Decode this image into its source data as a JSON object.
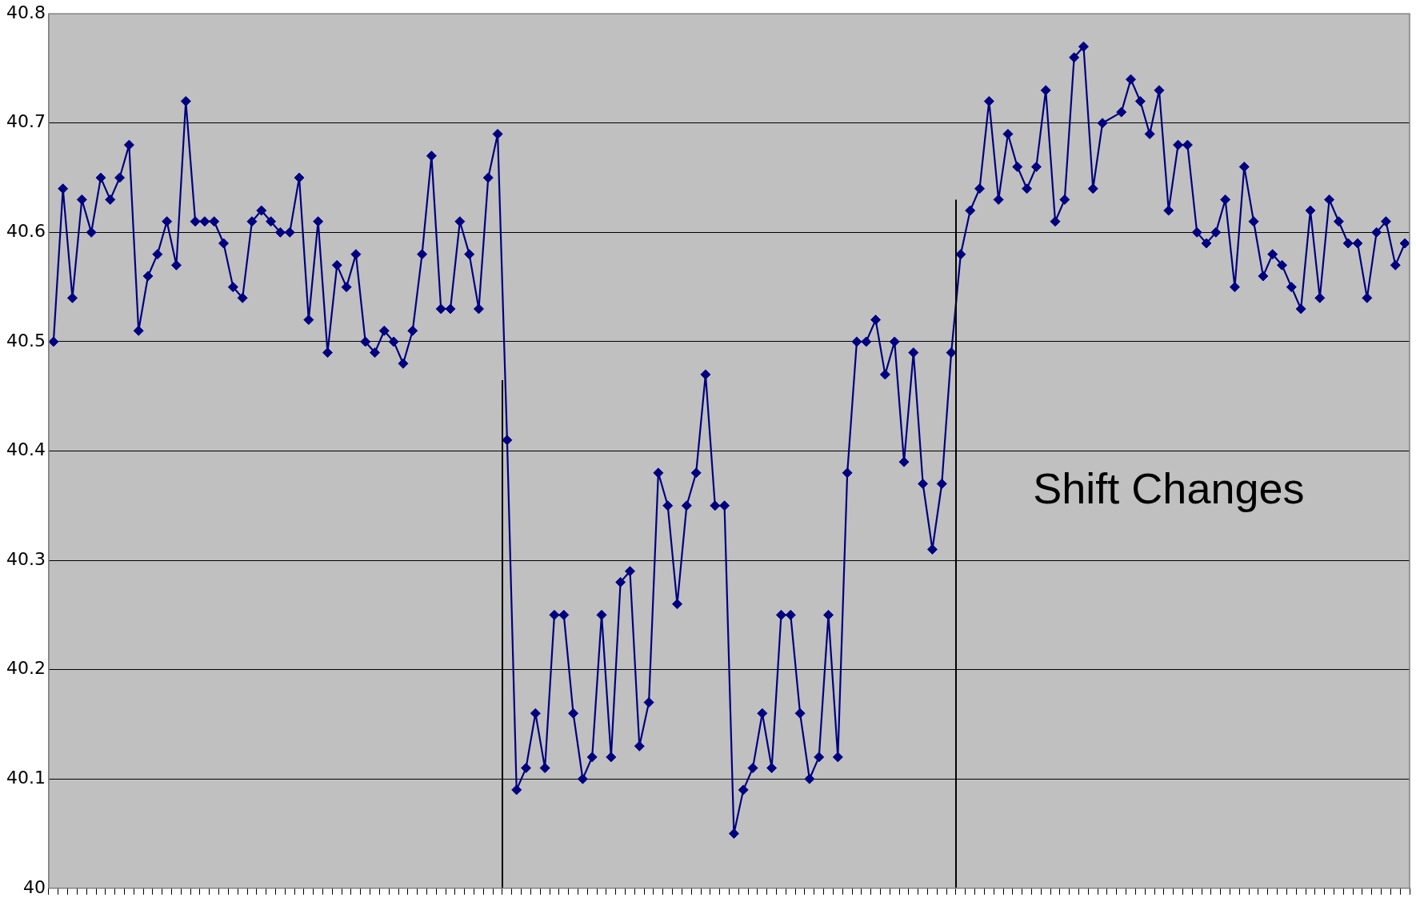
{
  "chart_data": {
    "type": "line",
    "categories": [
      null,
      null,
      null,
      null,
      null,
      null,
      null,
      null,
      null,
      null,
      null,
      null,
      null,
      null,
      null,
      null,
      null,
      null,
      null,
      null,
      null,
      null,
      null,
      null,
      null,
      null,
      null,
      null,
      null,
      null,
      null,
      null,
      null,
      null,
      null,
      null,
      null,
      null,
      null,
      null,
      null,
      null,
      null,
      null,
      null,
      null,
      null,
      null,
      null,
      null,
      null,
      null,
      null,
      null,
      null,
      null,
      null,
      null,
      null,
      null,
      null,
      null,
      null,
      null,
      null,
      null,
      null,
      null,
      null,
      null,
      null,
      null,
      null,
      null,
      null,
      null,
      null,
      null,
      null,
      null,
      null,
      null,
      null,
      null,
      null,
      null,
      null,
      null,
      null,
      null,
      null,
      null,
      null,
      null,
      null,
      null,
      null,
      null,
      null,
      null,
      null,
      null,
      null,
      null,
      null,
      null,
      null,
      null,
      null,
      null,
      null,
      null,
      null,
      null,
      null,
      null,
      null,
      null,
      null,
      null,
      null,
      null,
      null,
      null,
      null,
      null,
      null,
      null,
      null,
      null,
      null,
      null,
      null,
      null,
      null,
      null,
      null,
      null,
      null,
      null,
      null,
      null,
      null,
      null
    ],
    "series": [
      {
        "color": "#000080",
        "values": [
          40.5,
          40.64,
          40.54,
          40.63,
          40.6,
          40.65,
          40.63,
          40.65,
          40.68,
          40.51,
          40.56,
          40.58,
          40.61,
          40.57,
          40.72,
          40.61,
          40.61,
          40.61,
          40.59,
          40.55,
          40.54,
          40.61,
          40.62,
          40.61,
          40.6,
          40.6,
          40.65,
          40.52,
          40.61,
          40.49,
          40.57,
          40.55,
          40.58,
          40.5,
          40.49,
          40.51,
          40.5,
          40.48,
          40.51,
          40.58,
          40.67,
          40.53,
          40.53,
          40.61,
          40.58,
          40.53,
          40.65,
          40.69,
          40.41,
          40.09,
          40.11,
          40.16,
          40.11,
          40.25,
          40.25,
          40.16,
          40.1,
          40.12,
          40.25,
          40.12,
          40.28,
          40.29,
          40.13,
          40.17,
          40.38,
          40.35,
          40.26,
          40.35,
          40.38,
          40.47,
          40.35,
          40.35,
          40.05,
          40.09,
          40.11,
          40.16,
          40.11,
          40.25,
          40.25,
          40.16,
          40.1,
          40.12,
          40.25,
          40.12,
          40.38,
          40.5,
          40.5,
          40.52,
          40.47,
          40.5,
          40.39,
          40.49,
          40.37,
          40.31,
          40.37,
          40.49,
          40.58,
          40.62,
          40.64,
          40.72,
          40.63,
          40.69,
          40.66,
          40.64,
          40.66,
          40.73,
          40.61,
          40.63,
          40.76,
          40.77,
          40.64,
          40.7,
          null,
          40.71,
          40.74,
          40.72,
          40.69,
          40.73,
          40.62,
          40.68,
          40.68,
          40.6,
          40.59,
          40.6,
          40.63,
          40.55,
          40.66,
          40.61,
          40.56,
          40.58,
          40.57,
          40.55,
          40.53,
          40.62,
          40.54,
          40.63,
          40.61,
          40.59,
          40.59,
          40.54,
          40.6,
          40.61,
          40.57,
          40.59
        ]
      }
    ],
    "ylim": [
      40,
      40.8
    ],
    "yticks": [
      40,
      40.1,
      40.2,
      40.3,
      40.4,
      40.5,
      40.6,
      40.7,
      40.8
    ],
    "grid": "y",
    "tick_labels": "y",
    "marker": "diamond",
    "line_style": "solid",
    "legend": false,
    "annotations": [
      "Shift Changes"
    ]
  }
}
